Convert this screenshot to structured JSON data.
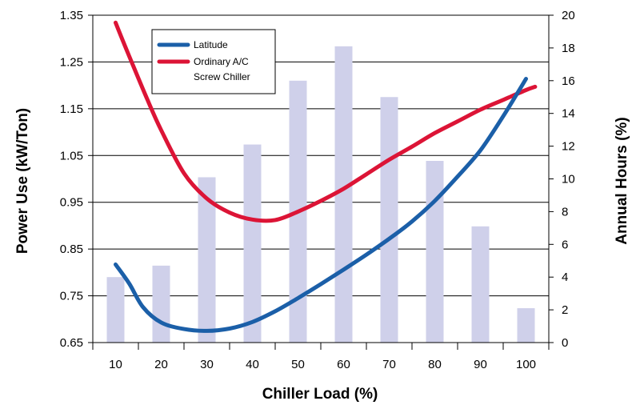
{
  "chart_data": {
    "type": "bar+line",
    "xlabel": "Chiller Load (%)",
    "ylabel_left": "Power Use (kW/Ton)",
    "ylabel_right": "Annual Hours (%)",
    "categories": [
      "10",
      "20",
      "30",
      "40",
      "50",
      "60",
      "70",
      "80",
      "90",
      "100"
    ],
    "x_values": [
      10,
      20,
      30,
      40,
      50,
      60,
      70,
      80,
      90,
      100
    ],
    "y_left": {
      "range": [
        0.65,
        1.35
      ],
      "ticks": [
        "0.65",
        "0.75",
        "0.85",
        "0.95",
        "1.05",
        "1.15",
        "1.25",
        "1.35"
      ]
    },
    "y_right": {
      "range": [
        0,
        20
      ],
      "ticks": [
        "0",
        "2",
        "4",
        "6",
        "8",
        "10",
        "12",
        "14",
        "16",
        "18",
        "20"
      ]
    },
    "grid": "horizontal",
    "legend_position": "top-left",
    "bars": {
      "axis": "right",
      "color": "#cfd0ea",
      "values": [
        4,
        4.7,
        10.1,
        12.1,
        16,
        18.1,
        15,
        11.1,
        7.1,
        2.1
      ]
    },
    "series": [
      {
        "name": "Latitude",
        "axis": "left",
        "color": "#1b5fa8",
        "points": [
          [
            10,
            0.817
          ],
          [
            13,
            0.776
          ],
          [
            16,
            0.726
          ],
          [
            20,
            0.693
          ],
          [
            25,
            0.679
          ],
          [
            30,
            0.675
          ],
          [
            35,
            0.68
          ],
          [
            40,
            0.694
          ],
          [
            45,
            0.717
          ],
          [
            50,
            0.745
          ],
          [
            55,
            0.775
          ],
          [
            60,
            0.806
          ],
          [
            65,
            0.838
          ],
          [
            70,
            0.872
          ],
          [
            75,
            0.909
          ],
          [
            80,
            0.953
          ],
          [
            85,
            1.005
          ],
          [
            90,
            1.061
          ],
          [
            95,
            1.134
          ],
          [
            100,
            1.214
          ]
        ]
      },
      {
        "name": "Ordinary A/C Screw Chiller",
        "name_lines": [
          "Ordinary A/C",
          "Screw Chiller"
        ],
        "axis": "left",
        "color": "#dc1436",
        "points": [
          [
            10,
            1.334
          ],
          [
            13,
            1.262
          ],
          [
            17,
            1.169
          ],
          [
            20,
            1.104
          ],
          [
            25,
            1.012
          ],
          [
            30,
            0.958
          ],
          [
            35,
            0.928
          ],
          [
            40,
            0.913
          ],
          [
            45,
            0.912
          ],
          [
            50,
            0.93
          ],
          [
            55,
            0.953
          ],
          [
            60,
            0.979
          ],
          [
            65,
            1.01
          ],
          [
            70,
            1.041
          ],
          [
            75,
            1.069
          ],
          [
            80,
            1.098
          ],
          [
            85,
            1.123
          ],
          [
            90,
            1.148
          ],
          [
            95,
            1.169
          ],
          [
            100,
            1.19
          ],
          [
            102,
            1.197
          ]
        ]
      }
    ]
  }
}
